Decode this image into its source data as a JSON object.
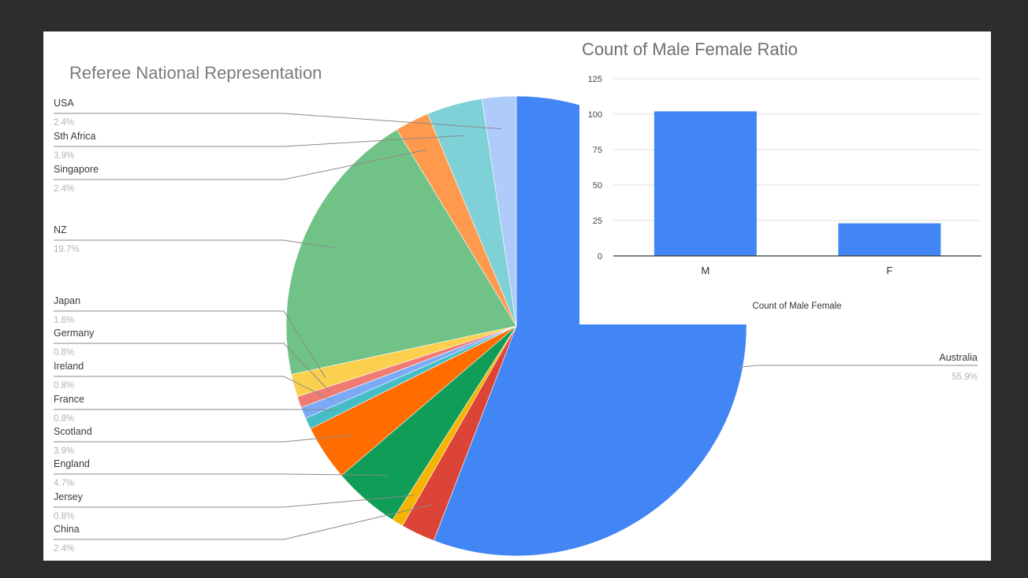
{
  "colors": {
    "background": "#2d2d2d",
    "panel": "#ffffff",
    "bar": "#4285f4",
    "leader_line": "#808080",
    "gridline": "#e0e0e0"
  },
  "chart_data": [
    {
      "type": "pie",
      "title": "Referee National Representation",
      "start_direction": "12 o'clock, counter-clockwise order starting with Australia going clockwise",
      "slices": [
        {
          "label": "Australia",
          "pct_label": "55.9%",
          "value": 55.9,
          "color": "#4285f4"
        },
        {
          "label": "China",
          "pct_label": "2.4%",
          "value": 2.4,
          "color": "#db4437"
        },
        {
          "label": "Jersey",
          "pct_label": "0.8%",
          "value": 0.8,
          "color": "#f4b400"
        },
        {
          "label": "England",
          "pct_label": "4.7%",
          "value": 4.7,
          "color": "#0f9d58"
        },
        {
          "label": "Scotland",
          "pct_label": "3.9%",
          "value": 3.9,
          "color": "#ff6d01"
        },
        {
          "label": "France",
          "pct_label": "0.8%",
          "value": 0.8,
          "color": "#46bdc6"
        },
        {
          "label": "Ireland",
          "pct_label": "0.8%",
          "value": 0.8,
          "color": "#7baaf7"
        },
        {
          "label": "Germany",
          "pct_label": "0.8%",
          "value": 0.8,
          "color": "#f07b72"
        },
        {
          "label": "Japan",
          "pct_label": "1.6%",
          "value": 1.6,
          "color": "#fcd04f"
        },
        {
          "label": "NZ",
          "pct_label": "19.7%",
          "value": 19.7,
          "color": "#71c287"
        },
        {
          "label": "Singapore",
          "pct_label": "2.4%",
          "value": 2.4,
          "color": "#ff994d"
        },
        {
          "label": "Sth Africa",
          "pct_label": "3.9%",
          "value": 3.9,
          "color": "#7ed1d7"
        },
        {
          "label": "USA",
          "pct_label": "2.4%",
          "value": 2.4,
          "color": "#afcbfa"
        }
      ]
    },
    {
      "type": "bar",
      "title": "Count of Male Female Ratio",
      "categories": [
        "M",
        "F"
      ],
      "values": [
        102,
        23
      ],
      "xlabel": "Count of Male Female",
      "ylabel": "",
      "ylim": [
        0,
        125
      ],
      "yticks": [
        "0",
        "25",
        "50",
        "75",
        "100",
        "125"
      ],
      "grid": true,
      "legend": "none"
    }
  ]
}
